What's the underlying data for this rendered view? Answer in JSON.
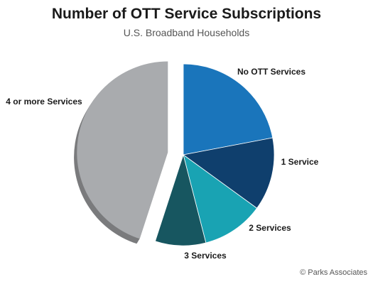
{
  "title": "Number of OTT Service Subscriptions",
  "subtitle": "U.S. Broadband Households",
  "copyright": "© Parks Associates",
  "chart_data": {
    "type": "pie",
    "title": "Number of OTT Service Subscriptions",
    "subtitle": "U.S. Broadband Households",
    "exploded": "4 or more Services",
    "slices": [
      {
        "label": "No OTT Services",
        "value": 22,
        "color": "#1a75bb"
      },
      {
        "label": "1 Service",
        "value": 13,
        "color": "#0f3f6d"
      },
      {
        "label": "2 Services",
        "value": 11,
        "color": "#19a3b3"
      },
      {
        "label": "3 Services",
        "value": 9,
        "color": "#175660"
      },
      {
        "label": "4 or more Services",
        "value": 45,
        "color": "#a9abae"
      }
    ]
  }
}
